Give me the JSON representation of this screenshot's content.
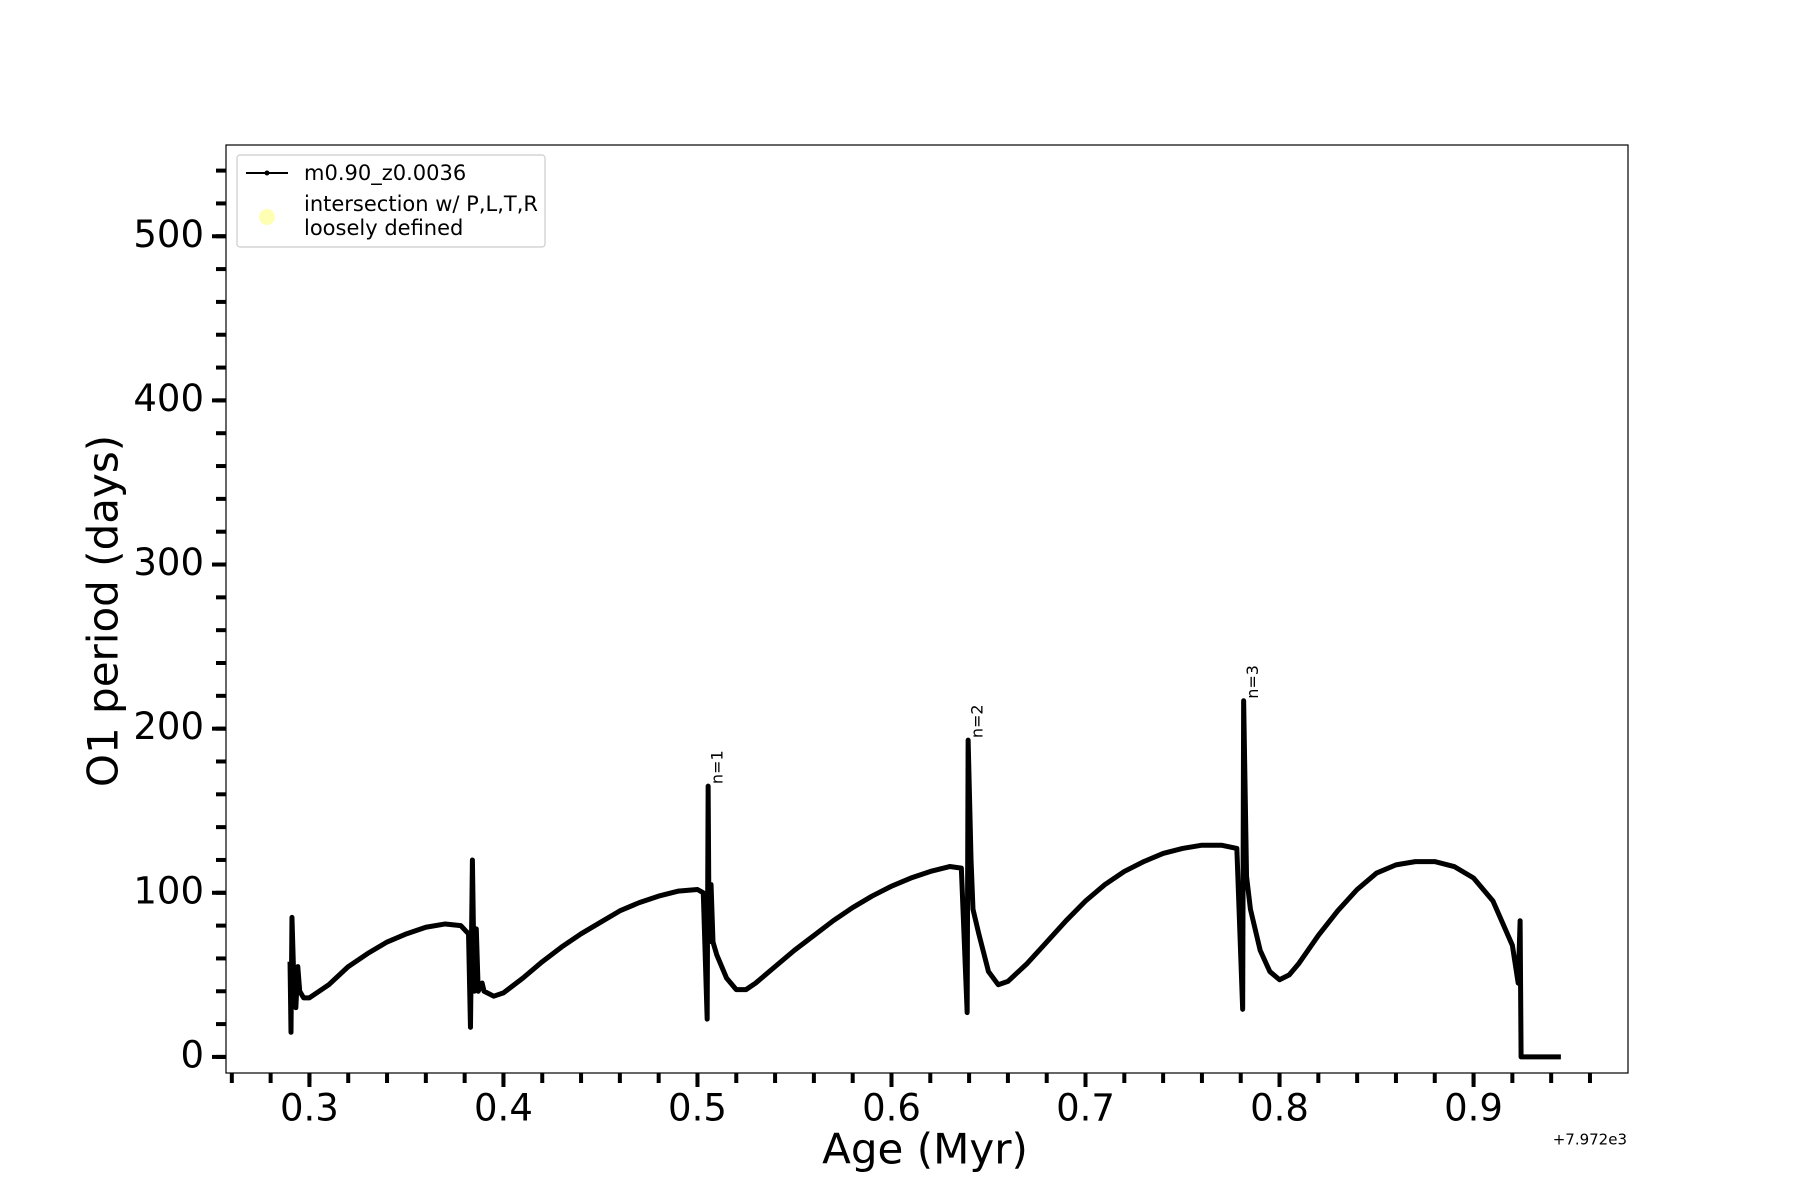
{
  "chart_data": {
    "type": "line",
    "xlabel": "Age (Myr)",
    "ylabel": "O1 period (days)",
    "x_offset_label": "+7.972e3",
    "x": [
      0.29,
      0.2905,
      0.291,
      0.292,
      0.293,
      0.294,
      0.295,
      0.297,
      0.3,
      0.31,
      0.32,
      0.33,
      0.34,
      0.35,
      0.36,
      0.37,
      0.378,
      0.382,
      0.383,
      0.384,
      0.385,
      0.386,
      0.387,
      0.389,
      0.39,
      0.395,
      0.4,
      0.41,
      0.42,
      0.43,
      0.44,
      0.45,
      0.46,
      0.47,
      0.48,
      0.49,
      0.5,
      0.503,
      0.505,
      0.5055,
      0.506,
      0.507,
      0.508,
      0.51,
      0.515,
      0.52,
      0.525,
      0.53,
      0.54,
      0.55,
      0.56,
      0.57,
      0.58,
      0.59,
      0.6,
      0.61,
      0.62,
      0.63,
      0.636,
      0.639,
      0.6395,
      0.641,
      0.642,
      0.645,
      0.65,
      0.655,
      0.66,
      0.67,
      0.68,
      0.69,
      0.7,
      0.71,
      0.72,
      0.73,
      0.74,
      0.75,
      0.76,
      0.77,
      0.778,
      0.781,
      0.7815,
      0.783,
      0.785,
      0.79,
      0.795,
      0.8,
      0.805,
      0.81,
      0.82,
      0.83,
      0.84,
      0.85,
      0.86,
      0.87,
      0.88,
      0.89,
      0.9,
      0.91,
      0.92,
      0.923,
      0.924,
      0.9245,
      0.93,
      0.945
    ],
    "series": [
      {
        "name": "m0.90_z0.0036",
        "color": "#000000",
        "values": [
          58,
          15,
          85,
          45,
          30,
          55,
          40,
          36,
          36,
          44,
          55,
          63,
          70,
          75,
          79,
          81,
          80,
          75,
          18,
          120,
          40,
          78,
          40,
          45,
          40,
          37,
          39,
          48,
          58,
          67,
          75,
          82,
          89,
          94,
          98,
          101,
          102,
          100,
          23,
          165,
          70,
          105,
          70,
          62,
          48,
          41,
          41,
          45,
          55,
          65,
          74,
          83,
          91,
          98,
          104,
          109,
          113,
          116,
          115,
          27,
          193,
          120,
          90,
          75,
          52,
          44,
          46,
          57,
          70,
          83,
          95,
          105,
          113,
          119,
          124,
          127,
          129,
          129,
          127,
          29,
          217,
          110,
          90,
          65,
          52,
          47,
          50,
          57,
          74,
          89,
          102,
          112,
          117,
          119,
          119,
          116,
          109,
          95,
          68,
          45,
          83,
          0,
          0,
          0
        ]
      }
    ],
    "extra_legend": {
      "lines": [
        "intersection w/ P,L,T,R",
        "loosely defined"
      ],
      "color": "#ffffb3"
    },
    "annotations": [
      {
        "text": "n=1",
        "x": 0.5055,
        "y": 165
      },
      {
        "text": "n=2",
        "x": 0.6395,
        "y": 193
      },
      {
        "text": "n=3",
        "x": 0.7815,
        "y": 217
      }
    ],
    "xlim": [
      0.257,
      0.9796
    ],
    "ylim": [
      -9.8,
      555.6
    ],
    "xticks": [
      0.3,
      0.4,
      0.5,
      0.6,
      0.7,
      0.8,
      0.9
    ],
    "yticks": [
      0,
      100,
      200,
      300,
      400,
      500
    ],
    "xminorticks": [
      0.26,
      0.28,
      0.3,
      0.32,
      0.34,
      0.36,
      0.38,
      0.4,
      0.42,
      0.44,
      0.46,
      0.48,
      0.5,
      0.52,
      0.54,
      0.56,
      0.58,
      0.6,
      0.62,
      0.64,
      0.66,
      0.68,
      0.7,
      0.72,
      0.74,
      0.76,
      0.78,
      0.8,
      0.82,
      0.84,
      0.86,
      0.88,
      0.9,
      0.92,
      0.94,
      0.96
    ],
    "yminorticks": [
      0,
      20,
      40,
      60,
      80,
      100,
      120,
      140,
      160,
      180,
      200,
      220,
      240,
      260,
      280,
      300,
      320,
      340,
      360,
      380,
      400,
      420,
      440,
      460,
      480,
      500,
      520,
      540
    ],
    "legend": "upper left",
    "grid": false
  }
}
